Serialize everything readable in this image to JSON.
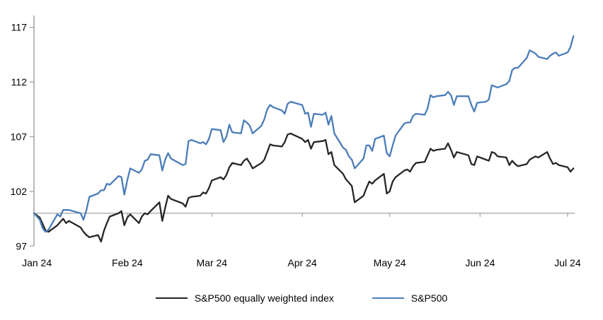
{
  "chart_data": {
    "type": "line",
    "title": "",
    "description": "Indexed performance (start = 100) of S&P500 vs S&P500 equally weighted index, Jan 2024 - Jul 2024",
    "y_axis": {
      "ticks": [
        97,
        102,
        107,
        112,
        117
      ],
      "min": 97,
      "max": 117,
      "baseline_value": 100
    },
    "x_axis": {
      "tick_labels": [
        "Jan 24",
        "Feb 24",
        "Mar 24",
        "Apr 24",
        "May 24",
        "Jun 24",
        "Jul 24"
      ],
      "tick_day_offsets": [
        1,
        32,
        61,
        92,
        122,
        153,
        183
      ],
      "domain_days": [
        0,
        185
      ]
    },
    "grid": "baseline-only",
    "legend_position": "bottom-center",
    "colors": {
      "equal_weight_line": "#262626",
      "sp500_line": "#4b7db9",
      "axis": "#a3a3a3",
      "text": "#000000"
    },
    "day_offsets": [
      0,
      2,
      3,
      4,
      5,
      8,
      9,
      10,
      11,
      12,
      16,
      17,
      18,
      19,
      22,
      23,
      24,
      25,
      26,
      29,
      30,
      31,
      32,
      33,
      36,
      37,
      38,
      39,
      40,
      43,
      44,
      45,
      46,
      47,
      51,
      52,
      53,
      54,
      57,
      58,
      59,
      60,
      61,
      64,
      65,
      66,
      67,
      68,
      71,
      72,
      73,
      74,
      75,
      78,
      79,
      80,
      81,
      82,
      85,
      86,
      87,
      88,
      92,
      93,
      94,
      95,
      96,
      99,
      100,
      101,
      102,
      103,
      106,
      107,
      108,
      109,
      110,
      113,
      114,
      115,
      116,
      117,
      120,
      121,
      122,
      123,
      124,
      127,
      128,
      129,
      130,
      131,
      134,
      135,
      136,
      137,
      138,
      141,
      142,
      143,
      144,
      145,
      149,
      150,
      151,
      152,
      155,
      156,
      157,
      158,
      159,
      162,
      163,
      164,
      165,
      166,
      169,
      170,
      172,
      173,
      176,
      177,
      178,
      179,
      180,
      183,
      184,
      185
    ],
    "series": [
      {
        "name": "S&P500 equally weighted index",
        "color": "#262626",
        "values": [
          100.0,
          99.6,
          99.0,
          98.4,
          98.3,
          98.9,
          99.2,
          99.5,
          99.1,
          99.3,
          98.7,
          98.3,
          98.0,
          97.8,
          98.0,
          97.4,
          98.4,
          99.1,
          99.7,
          100.0,
          100.2,
          98.9,
          99.6,
          99.9,
          99.1,
          99.7,
          100.0,
          99.9,
          100.2,
          101.0,
          99.3,
          100.5,
          101.6,
          101.3,
          100.9,
          100.6,
          101.4,
          101.5,
          101.6,
          101.9,
          101.8,
          102.3,
          103.0,
          103.3,
          103.1,
          103.5,
          104.2,
          104.6,
          104.4,
          104.8,
          105.0,
          104.6,
          104.1,
          104.6,
          104.9,
          105.6,
          106.3,
          106.2,
          106.1,
          106.5,
          107.2,
          107.3,
          106.8,
          106.5,
          106.7,
          105.9,
          106.5,
          106.6,
          106.7,
          105.4,
          105.6,
          104.4,
          103.6,
          103.1,
          102.8,
          102.5,
          101.0,
          101.6,
          102.3,
          102.9,
          102.7,
          103.0,
          103.6,
          101.8,
          102.0,
          102.9,
          103.3,
          103.9,
          104.0,
          103.8,
          104.3,
          104.6,
          104.7,
          105.3,
          105.9,
          105.7,
          105.8,
          105.9,
          106.4,
          105.8,
          105.1,
          105.6,
          105.3,
          104.5,
          104.4,
          105.2,
          104.9,
          104.8,
          105.6,
          105.5,
          105.2,
          105.1,
          104.4,
          104.8,
          104.5,
          104.3,
          104.5,
          104.9,
          105.2,
          105.1,
          105.6,
          105.0,
          104.5,
          104.6,
          104.4,
          104.2,
          103.8,
          104.1
        ]
      },
      {
        "name": "S&P500",
        "color": "#4b7db9",
        "values": [
          100.0,
          99.4,
          98.6,
          98.3,
          98.5,
          99.9,
          99.7,
          100.3,
          100.3,
          100.3,
          100.0,
          99.4,
          100.3,
          101.5,
          101.8,
          102.1,
          102.1,
          102.7,
          102.6,
          103.4,
          103.3,
          101.7,
          103.0,
          104.1,
          103.7,
          104.0,
          104.8,
          104.9,
          105.4,
          105.3,
          103.9,
          104.9,
          105.5,
          105.0,
          104.4,
          104.5,
          106.6,
          106.7,
          106.4,
          106.5,
          106.3,
          106.8,
          107.7,
          107.6,
          106.5,
          107.0,
          108.1,
          107.4,
          107.3,
          108.5,
          108.3,
          108.0,
          107.3,
          108.0,
          108.6,
          109.5,
          109.9,
          109.7,
          109.4,
          109.1,
          110.0,
          110.2,
          109.9,
          109.1,
          109.2,
          107.9,
          109.1,
          109.0,
          109.2,
          108.1,
          108.9,
          107.3,
          106.0,
          105.8,
          105.2,
          104.9,
          104.1,
          105.0,
          106.2,
          106.2,
          105.7,
          106.8,
          107.1,
          105.5,
          105.2,
          106.2,
          107.1,
          108.2,
          108.3,
          108.3,
          108.9,
          109.1,
          109.0,
          109.6,
          110.8,
          110.6,
          110.7,
          110.8,
          111.1,
          110.8,
          109.9,
          110.7,
          110.7,
          109.9,
          109.3,
          110.1,
          110.2,
          110.4,
          111.7,
          111.6,
          111.5,
          111.8,
          112.1,
          113.1,
          113.3,
          113.3,
          114.2,
          114.9,
          114.6,
          114.3,
          114.1,
          114.4,
          114.6,
          114.7,
          114.4,
          114.7,
          115.2,
          116.2
        ]
      }
    ]
  },
  "legend": {
    "item0_label": "S&P500 equally weighted index",
    "item1_label": "S&P500"
  }
}
